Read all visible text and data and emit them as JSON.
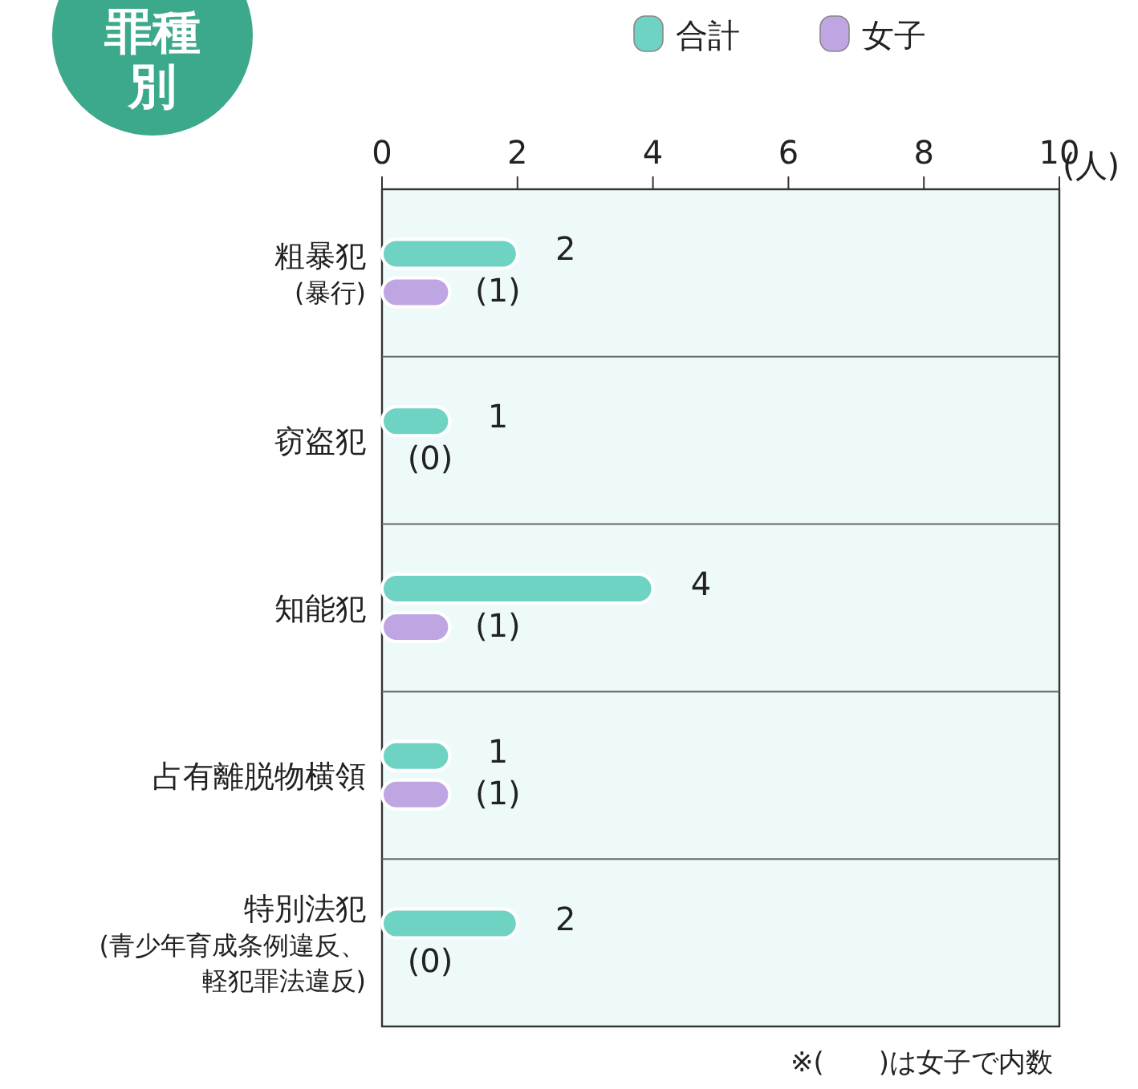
{
  "chart_data": {
    "type": "bar",
    "orientation": "horizontal",
    "title": "罪種別",
    "xlabel": "(人)",
    "categories": [
      "粗暴犯(暴行)",
      "窃盗犯",
      "知能犯",
      "占有離脱物横領",
      "特別法犯(青少年育成条例違反、軽犯罪法違反)"
    ],
    "series": [
      {
        "name": "合計",
        "color": "#6fd3c3",
        "values": [
          2,
          1,
          4,
          1,
          2
        ],
        "value_labels": [
          "2",
          "1",
          "4",
          "1",
          "2"
        ]
      },
      {
        "name": "女子",
        "color": "#bfa6e3",
        "values": [
          1,
          0,
          1,
          1,
          0
        ],
        "value_labels": [
          "(1)",
          "(0)",
          "(1)",
          "(1)",
          "(0)"
        ]
      }
    ],
    "xlim": [
      0,
      10
    ],
    "xticks": [
      0,
      2,
      4,
      6,
      8,
      10
    ],
    "legend": "top right",
    "annotations": [
      "※(　　)は女子で内数"
    ]
  }
}
